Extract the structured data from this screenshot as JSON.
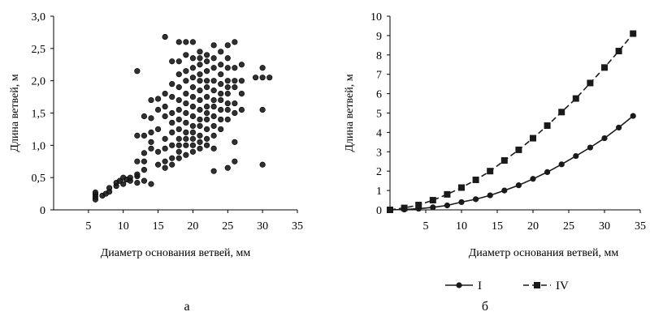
{
  "chart_data": [
    {
      "type": "scatter",
      "panel_label": "а",
      "xlabel": "Диаметр основания ветвей, мм",
      "ylabel": "Длина ветвей, м",
      "xlim": [
        0,
        35
      ],
      "ylim": [
        0,
        3.0
      ],
      "x_ticks": [
        "5",
        "10",
        "15",
        "20",
        "25",
        "30",
        "35"
      ],
      "y_ticks": [
        "0",
        "0,5",
        "1,0",
        "1,5",
        "2,0",
        "2,5",
        "3,0"
      ],
      "grid": false,
      "marker_color": "#1a1a1a",
      "points": [
        [
          6,
          0.16
        ],
        [
          6,
          0.2
        ],
        [
          6,
          0.24
        ],
        [
          6,
          0.27
        ],
        [
          7,
          0.22
        ],
        [
          7.5,
          0.25
        ],
        [
          8,
          0.28
        ],
        [
          8,
          0.34
        ],
        [
          9,
          0.37
        ],
        [
          9,
          0.42
        ],
        [
          9.5,
          0.45
        ],
        [
          10,
          0.4
        ],
        [
          10,
          0.5
        ],
        [
          10.5,
          0.47
        ],
        [
          11,
          0.45
        ],
        [
          11,
          0.5
        ],
        [
          12,
          0.42
        ],
        [
          12,
          0.52
        ],
        [
          12,
          0.55
        ],
        [
          12,
          0.75
        ],
        [
          12,
          1.15
        ],
        [
          12,
          2.15
        ],
        [
          13,
          0.45
        ],
        [
          13,
          0.62
        ],
        [
          13,
          0.75
        ],
        [
          13,
          0.88
        ],
        [
          13,
          1.15
        ],
        [
          13,
          1.45
        ],
        [
          14,
          0.4
        ],
        [
          14,
          0.95
        ],
        [
          14,
          1.05
        ],
        [
          14,
          1.2
        ],
        [
          14,
          1.42
        ],
        [
          14,
          1.7
        ],
        [
          15,
          0.7
        ],
        [
          15,
          0.9
        ],
        [
          15,
          1.25
        ],
        [
          15,
          1.55
        ],
        [
          15,
          1.72
        ],
        [
          16,
          0.65
        ],
        [
          16,
          0.75
        ],
        [
          16,
          0.95
        ],
        [
          16,
          1.1
        ],
        [
          16,
          1.45
        ],
        [
          16,
          1.6
        ],
        [
          16,
          1.8
        ],
        [
          16,
          2.68
        ],
        [
          17,
          0.7
        ],
        [
          17,
          0.8
        ],
        [
          17,
          1.0
        ],
        [
          17,
          1.2
        ],
        [
          17,
          1.35
        ],
        [
          17,
          1.5
        ],
        [
          17,
          1.75
        ],
        [
          17,
          1.95
        ],
        [
          17,
          2.3
        ],
        [
          18,
          0.8
        ],
        [
          18,
          0.9
        ],
        [
          18,
          1.0
        ],
        [
          18,
          1.1
        ],
        [
          18,
          1.25
        ],
        [
          18,
          1.4
        ],
        [
          18,
          1.55
        ],
        [
          18,
          1.7
        ],
        [
          18,
          1.9
        ],
        [
          18,
          2.1
        ],
        [
          18,
          2.3
        ],
        [
          18,
          2.6
        ],
        [
          19,
          0.85
        ],
        [
          19,
          1.0
        ],
        [
          19,
          1.1
        ],
        [
          19,
          1.2
        ],
        [
          19,
          1.35
        ],
        [
          19,
          1.5
        ],
        [
          19,
          1.65
        ],
        [
          19,
          1.8
        ],
        [
          19,
          2.0
        ],
        [
          19,
          2.15
        ],
        [
          19,
          2.4
        ],
        [
          19,
          2.6
        ],
        [
          20,
          0.9
        ],
        [
          20,
          1.0
        ],
        [
          20,
          1.1
        ],
        [
          20,
          1.2
        ],
        [
          20,
          1.3
        ],
        [
          20,
          1.45
        ],
        [
          20,
          1.6
        ],
        [
          20,
          1.75
        ],
        [
          20,
          1.9
        ],
        [
          20,
          2.05
        ],
        [
          20,
          2.2
        ],
        [
          20,
          2.35
        ],
        [
          20,
          2.6
        ],
        [
          21,
          0.95
        ],
        [
          21,
          1.05
        ],
        [
          21,
          1.15
        ],
        [
          21,
          1.3
        ],
        [
          21,
          1.4
        ],
        [
          21,
          1.55
        ],
        [
          21,
          1.7
        ],
        [
          21,
          1.85
        ],
        [
          21,
          2.0
        ],
        [
          21,
          2.1
        ],
        [
          21,
          2.25
        ],
        [
          21,
          2.35
        ],
        [
          21,
          2.45
        ],
        [
          22,
          1.0
        ],
        [
          22,
          1.1
        ],
        [
          22,
          1.25
        ],
        [
          22,
          1.4
        ],
        [
          22,
          1.5
        ],
        [
          22,
          1.6
        ],
        [
          22,
          1.75
        ],
        [
          22,
          1.9
        ],
        [
          22,
          2.0
        ],
        [
          22,
          2.15
        ],
        [
          22,
          2.3
        ],
        [
          22,
          2.4
        ],
        [
          23,
          0.6
        ],
        [
          23,
          0.95
        ],
        [
          23,
          1.15
        ],
        [
          23,
          1.3
        ],
        [
          23,
          1.45
        ],
        [
          23,
          1.6
        ],
        [
          23,
          1.7
        ],
        [
          23,
          1.85
        ],
        [
          23,
          2.0
        ],
        [
          23,
          2.2
        ],
        [
          23,
          2.35
        ],
        [
          23,
          2.55
        ],
        [
          24,
          1.25
        ],
        [
          24,
          1.4
        ],
        [
          24,
          1.55
        ],
        [
          24,
          1.7
        ],
        [
          24,
          1.8
        ],
        [
          24,
          1.95
        ],
        [
          24,
          2.1
        ],
        [
          24,
          2.25
        ],
        [
          24,
          2.45
        ],
        [
          25,
          0.65
        ],
        [
          25,
          1.4
        ],
        [
          25,
          1.55
        ],
        [
          25,
          1.65
        ],
        [
          25,
          1.8
        ],
        [
          25,
          1.9
        ],
        [
          25,
          2.0
        ],
        [
          25,
          2.2
        ],
        [
          25,
          2.35
        ],
        [
          25,
          2.55
        ],
        [
          26,
          0.75
        ],
        [
          26,
          1.05
        ],
        [
          26,
          1.5
        ],
        [
          26,
          1.65
        ],
        [
          26,
          1.9
        ],
        [
          26,
          2.0
        ],
        [
          26,
          2.2
        ],
        [
          26,
          2.6
        ],
        [
          27,
          1.55
        ],
        [
          27,
          1.8
        ],
        [
          27,
          2.0
        ],
        [
          27,
          2.25
        ],
        [
          29,
          2.05
        ],
        [
          30,
          0.7
        ],
        [
          30,
          1.55
        ],
        [
          30,
          2.05
        ],
        [
          30,
          2.2
        ],
        [
          31,
          2.05
        ]
      ]
    },
    {
      "type": "line",
      "panel_label": "б",
      "xlabel": "Диаметр основания ветвей, мм",
      "ylabel": "Длина ветвей, м",
      "xlim": [
        0,
        35
      ],
      "ylim": [
        0,
        10
      ],
      "x_ticks": [
        "5",
        "10",
        "15",
        "20",
        "25",
        "30",
        "35"
      ],
      "y_ticks": [
        "0",
        "1",
        "2",
        "3",
        "4",
        "5",
        "6",
        "7",
        "8",
        "9",
        "10"
      ],
      "grid": false,
      "legend_position": "bottom",
      "series": [
        {
          "name": "I",
          "line_style": "solid",
          "marker": "circle",
          "color": "#1a1a1a",
          "x": [
            0,
            2,
            4,
            6,
            8,
            10,
            12,
            14,
            16,
            18,
            20,
            22,
            24,
            26,
            28,
            30,
            32,
            34
          ],
          "y": [
            0.0,
            0.02,
            0.06,
            0.13,
            0.23,
            0.4,
            0.55,
            0.75,
            1.0,
            1.27,
            1.6,
            1.95,
            2.35,
            2.78,
            3.22,
            3.7,
            4.25,
            4.85
          ]
        },
        {
          "name": "IV",
          "line_style": "dashed",
          "marker": "square",
          "color": "#1a1a1a",
          "x": [
            0,
            2,
            4,
            6,
            8,
            10,
            12,
            14,
            16,
            18,
            20,
            22,
            24,
            26,
            28,
            30,
            32,
            34
          ],
          "y": [
            0.0,
            0.1,
            0.25,
            0.5,
            0.8,
            1.15,
            1.55,
            2.0,
            2.55,
            3.1,
            3.7,
            4.35,
            5.05,
            5.75,
            6.55,
            7.35,
            8.2,
            9.1
          ]
        }
      ]
    }
  ]
}
